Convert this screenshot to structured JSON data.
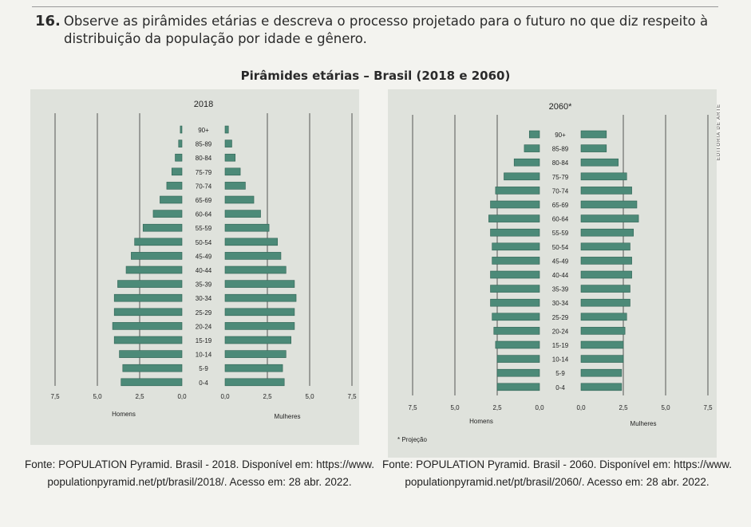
{
  "question": {
    "number": "16.",
    "line1": "Observe as pirâmides etárias e descreva o processo projetado para o futuro no que diz respeito à",
    "line2": "distribuição da população por idade e gênero."
  },
  "figure_title": "Pirâmides etárias – Brasil (2018 e 2060)",
  "editor_tag": "EDITORIA DE ARTE",
  "colors": {
    "bar": "#4c8a78",
    "bar_stroke": "#2f6354",
    "axis": "#555555"
  },
  "chart_data": [
    {
      "type": "bar",
      "orientation": "horizontal-pyramid",
      "title": "2018",
      "note": "",
      "categories": [
        "0-4",
        "5-9",
        "10-14",
        "15-19",
        "20-24",
        "25-29",
        "30-34",
        "35-39",
        "40-44",
        "45-49",
        "50-54",
        "55-59",
        "60-64",
        "65-69",
        "70-74",
        "75-79",
        "80-84",
        "85-89",
        "90+"
      ],
      "series": [
        {
          "name": "Homens",
          "values": [
            3.6,
            3.5,
            3.7,
            4.0,
            4.1,
            4.0,
            4.0,
            3.8,
            3.3,
            3.0,
            2.8,
            2.3,
            1.7,
            1.3,
            0.9,
            0.6,
            0.4,
            0.2,
            0.1
          ]
        },
        {
          "name": "Mulheres",
          "values": [
            3.5,
            3.4,
            3.6,
            3.9,
            4.1,
            4.1,
            4.2,
            4.1,
            3.6,
            3.3,
            3.1,
            2.6,
            2.1,
            1.7,
            1.2,
            0.9,
            0.6,
            0.4,
            0.2
          ]
        }
      ],
      "xticks": [
        "7,5",
        "5,0",
        "2,5",
        "0,0",
        "0,0",
        "2,5",
        "5,0",
        "7,5"
      ],
      "xlim": [
        0,
        7.5
      ],
      "xlabel_left": "Homens",
      "xlabel_right": "Mulheres",
      "grid": true
    },
    {
      "type": "bar",
      "orientation": "horizontal-pyramid",
      "title": "2060*",
      "note": "* Projeção",
      "categories": [
        "0-4",
        "5-9",
        "10-14",
        "15-19",
        "20-24",
        "25-29",
        "30-34",
        "35-39",
        "40-44",
        "45-49",
        "50-54",
        "55-59",
        "60-64",
        "65-69",
        "70-74",
        "75-79",
        "80-84",
        "85-89",
        "90+"
      ],
      "series": [
        {
          "name": "Homens",
          "values": [
            2.5,
            2.5,
            2.5,
            2.6,
            2.7,
            2.8,
            2.9,
            2.9,
            2.9,
            2.8,
            2.8,
            2.9,
            3.0,
            2.9,
            2.6,
            2.1,
            1.5,
            0.9,
            0.6
          ]
        },
        {
          "name": "Mulheres",
          "values": [
            2.4,
            2.4,
            2.5,
            2.5,
            2.6,
            2.7,
            2.9,
            2.9,
            3.0,
            3.0,
            2.9,
            3.1,
            3.4,
            3.3,
            3.0,
            2.7,
            2.2,
            1.5,
            1.5
          ]
        }
      ],
      "xticks": [
        "7,5",
        "5,0",
        "2,5",
        "0,0",
        "0,0",
        "2,5",
        "5,0",
        "7,5"
      ],
      "xlim": [
        0,
        7.5
      ],
      "xlabel_left": "Homens",
      "xlabel_right": "Mulheres",
      "grid": true
    }
  ],
  "sources": {
    "left_line1": "Fonte: POPULATION Pyramid. Brasil - 2018. Disponível em: https://www.",
    "left_line2": "populationpyramid.net/pt/brasil/2018/. Acesso em: 28 abr. 2022.",
    "right_line1": "Fonte: POPULATION Pyramid. Brasil - 2060. Disponível em: https://www.",
    "right_line2": "populationpyramid.net/pt/brasil/2060/. Acesso em: 28 abr. 2022."
  }
}
